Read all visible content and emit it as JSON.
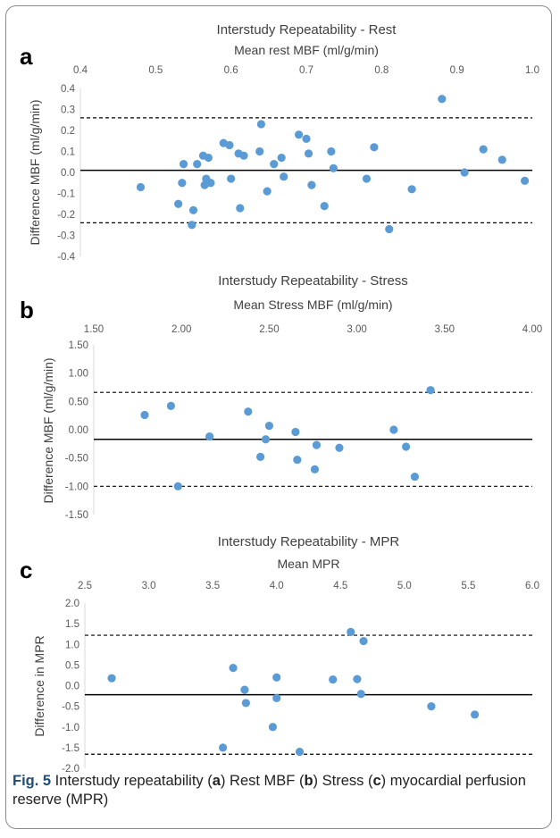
{
  "caption": {
    "fig_label": "Fig. 5",
    "t1": " Interstudy repeatability (",
    "a": "a",
    "t2": ") Rest MBF (",
    "b": "b",
    "t3": ") Stress (",
    "c": "c",
    "t4": ") myocardial perfusion reserve (MPR)"
  },
  "colors": {
    "point": "#5b9bd5",
    "line": "#000000",
    "axis": "#d9d9d9"
  },
  "chart_data": [
    {
      "type": "scatter",
      "panel_letter": "a",
      "title": "Interstudy Repeatability - Rest",
      "xlabel": "Mean rest MBF (ml/g/min)",
      "ylabel": "Difference MBF (ml/g/min)",
      "xlim": [
        0.4,
        1.0
      ],
      "ylim": [
        -0.4,
        0.4
      ],
      "x_ticks": [
        "0.4",
        "0.5",
        "0.6",
        "0.7",
        "0.8",
        "0.9",
        "1.0"
      ],
      "y_ticks": [
        "0.4",
        "0.3",
        "0.2",
        "0.1",
        "0.0",
        "-0.1",
        "-0.2",
        "-0.3",
        "-0.4"
      ],
      "mean_line": 0.01,
      "upper_loa": 0.26,
      "lower_loa": -0.24,
      "points": [
        {
          "x": 0.48,
          "y": -0.07
        },
        {
          "x": 0.53,
          "y": -0.15
        },
        {
          "x": 0.535,
          "y": -0.05
        },
        {
          "x": 0.537,
          "y": 0.04
        },
        {
          "x": 0.548,
          "y": -0.25
        },
        {
          "x": 0.55,
          "y": -0.18
        },
        {
          "x": 0.555,
          "y": 0.04
        },
        {
          "x": 0.563,
          "y": 0.08
        },
        {
          "x": 0.565,
          "y": -0.06
        },
        {
          "x": 0.567,
          "y": -0.03
        },
        {
          "x": 0.57,
          "y": 0.07
        },
        {
          "x": 0.573,
          "y": -0.05
        },
        {
          "x": 0.59,
          "y": 0.14
        },
        {
          "x": 0.598,
          "y": 0.13
        },
        {
          "x": 0.6,
          "y": -0.03
        },
        {
          "x": 0.61,
          "y": 0.09
        },
        {
          "x": 0.612,
          "y": -0.17
        },
        {
          "x": 0.617,
          "y": 0.08
        },
        {
          "x": 0.638,
          "y": 0.1
        },
        {
          "x": 0.64,
          "y": 0.23
        },
        {
          "x": 0.648,
          "y": -0.09
        },
        {
          "x": 0.657,
          "y": 0.04
        },
        {
          "x": 0.667,
          "y": 0.07
        },
        {
          "x": 0.67,
          "y": -0.02
        },
        {
          "x": 0.69,
          "y": 0.18
        },
        {
          "x": 0.7,
          "y": 0.16
        },
        {
          "x": 0.703,
          "y": 0.09
        },
        {
          "x": 0.707,
          "y": -0.06
        },
        {
          "x": 0.724,
          "y": -0.16
        },
        {
          "x": 0.733,
          "y": 0.1
        },
        {
          "x": 0.736,
          "y": 0.02
        },
        {
          "x": 0.78,
          "y": -0.03
        },
        {
          "x": 0.79,
          "y": 0.12
        },
        {
          "x": 0.81,
          "y": -0.27
        },
        {
          "x": 0.84,
          "y": -0.08
        },
        {
          "x": 0.88,
          "y": 0.35
        },
        {
          "x": 0.91,
          "y": 0.0
        },
        {
          "x": 0.935,
          "y": 0.11
        },
        {
          "x": 0.96,
          "y": 0.06
        },
        {
          "x": 0.99,
          "y": -0.04
        }
      ]
    },
    {
      "type": "scatter",
      "panel_letter": "b",
      "title": "Interstudy Repeatability - Stress",
      "xlabel": "Mean Stress MBF (ml/g/min)",
      "ylabel": "Difference MBF (ml/g/min)",
      "xlim": [
        1.5,
        4.0
      ],
      "ylim": [
        -1.5,
        1.5
      ],
      "x_ticks": [
        "1.50",
        "2.00",
        "2.50",
        "3.00",
        "3.50",
        "4.00"
      ],
      "y_ticks": [
        "1.50",
        "1.00",
        "0.50",
        "0.00",
        "-0.50",
        "-1.00",
        "-1.50"
      ],
      "mean_line": -0.17,
      "upper_loa": 0.66,
      "lower_loa": -1.0,
      "points": [
        {
          "x": 1.79,
          "y": 0.26
        },
        {
          "x": 1.94,
          "y": 0.42
        },
        {
          "x": 1.98,
          "y": -1.0
        },
        {
          "x": 2.16,
          "y": -0.12
        },
        {
          "x": 2.38,
          "y": 0.32
        },
        {
          "x": 2.45,
          "y": -0.48
        },
        {
          "x": 2.48,
          "y": -0.17
        },
        {
          "x": 2.5,
          "y": 0.07
        },
        {
          "x": 2.65,
          "y": -0.04
        },
        {
          "x": 2.66,
          "y": -0.53
        },
        {
          "x": 2.76,
          "y": -0.7
        },
        {
          "x": 2.77,
          "y": -0.27
        },
        {
          "x": 2.9,
          "y": -0.32
        },
        {
          "x": 3.21,
          "y": 0.0
        },
        {
          "x": 3.28,
          "y": -0.3
        },
        {
          "x": 3.33,
          "y": -0.83
        },
        {
          "x": 3.42,
          "y": 0.7
        }
      ]
    },
    {
      "type": "scatter",
      "panel_letter": "c",
      "title": "Interstudy Repeatability - MPR",
      "xlabel": "Mean MPR",
      "ylabel": "Difference in MPR",
      "xlim": [
        2.5,
        6.0
      ],
      "ylim": [
        -2.0,
        2.0
      ],
      "x_ticks": [
        "2.5",
        "3.0",
        "3.5",
        "4.0",
        "4.5",
        "5.0",
        "5.5",
        "6.0"
      ],
      "y_ticks": [
        "2.0",
        "1.5",
        "1.0",
        "0.5",
        "0.0",
        "-0.5",
        "-1.0",
        "-1.5",
        "-2.0"
      ],
      "mean_line": -0.22,
      "upper_loa": 1.22,
      "lower_loa": -1.66,
      "points": [
        {
          "x": 2.71,
          "y": 0.18
        },
        {
          "x": 3.58,
          "y": -1.5
        },
        {
          "x": 3.66,
          "y": 0.43
        },
        {
          "x": 3.75,
          "y": -0.1
        },
        {
          "x": 3.76,
          "y": -0.42
        },
        {
          "x": 3.97,
          "y": -1.0
        },
        {
          "x": 4.0,
          "y": 0.2
        },
        {
          "x": 4.0,
          "y": -0.3
        },
        {
          "x": 4.18,
          "y": -1.6
        },
        {
          "x": 4.44,
          "y": 0.15
        },
        {
          "x": 4.58,
          "y": 1.3
        },
        {
          "x": 4.63,
          "y": 0.16
        },
        {
          "x": 4.66,
          "y": -0.2
        },
        {
          "x": 4.68,
          "y": 1.08
        },
        {
          "x": 5.21,
          "y": -0.5
        },
        {
          "x": 5.55,
          "y": -0.7
        }
      ]
    }
  ]
}
